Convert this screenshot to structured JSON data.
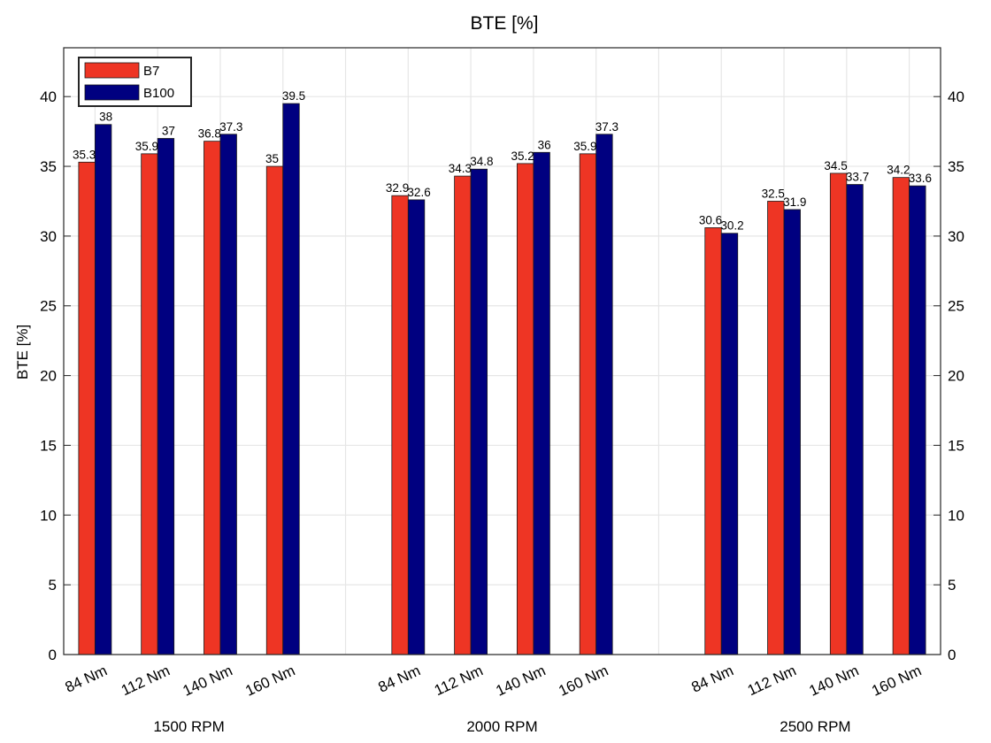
{
  "chart_data": {
    "type": "bar",
    "title": "BTE [%]",
    "xlabel": "",
    "ylabel": "BTE [%]",
    "ylim": [
      0,
      43.5
    ],
    "yticks": [
      0,
      5,
      10,
      15,
      20,
      25,
      30,
      35,
      40
    ],
    "grid": true,
    "legend_position": "top-left",
    "groups": [
      "1500 RPM",
      "2000 RPM",
      "2500 RPM"
    ],
    "categories": [
      "84 Nm",
      "112 Nm",
      "140 Nm",
      "160 Nm"
    ],
    "series": [
      {
        "name": "B7",
        "color": "#ee3524",
        "values": [
          [
            35.3,
            35.9,
            36.8,
            35
          ],
          [
            32.9,
            34.3,
            35.2,
            35.9
          ],
          [
            30.6,
            32.5,
            34.5,
            34.2
          ]
        ],
        "labels": [
          [
            "35.3",
            "35.9",
            "36.8",
            "35"
          ],
          [
            "32.9",
            "34.3",
            "35.2",
            "35.9"
          ],
          [
            "30.6",
            "32.5",
            "34.5",
            "34.2"
          ]
        ]
      },
      {
        "name": "B100",
        "color": "#000080",
        "values": [
          [
            38,
            37,
            37.3,
            39.5
          ],
          [
            32.6,
            34.8,
            36,
            37.3
          ],
          [
            30.2,
            31.9,
            33.7,
            33.6
          ]
        ],
        "labels": [
          [
            "38",
            "37",
            "37.3",
            "39.5"
          ],
          [
            "32.6",
            "34.8",
            "36",
            "37.3"
          ],
          [
            "30.2",
            "31.9",
            "33.7",
            "33.6"
          ]
        ]
      }
    ]
  }
}
